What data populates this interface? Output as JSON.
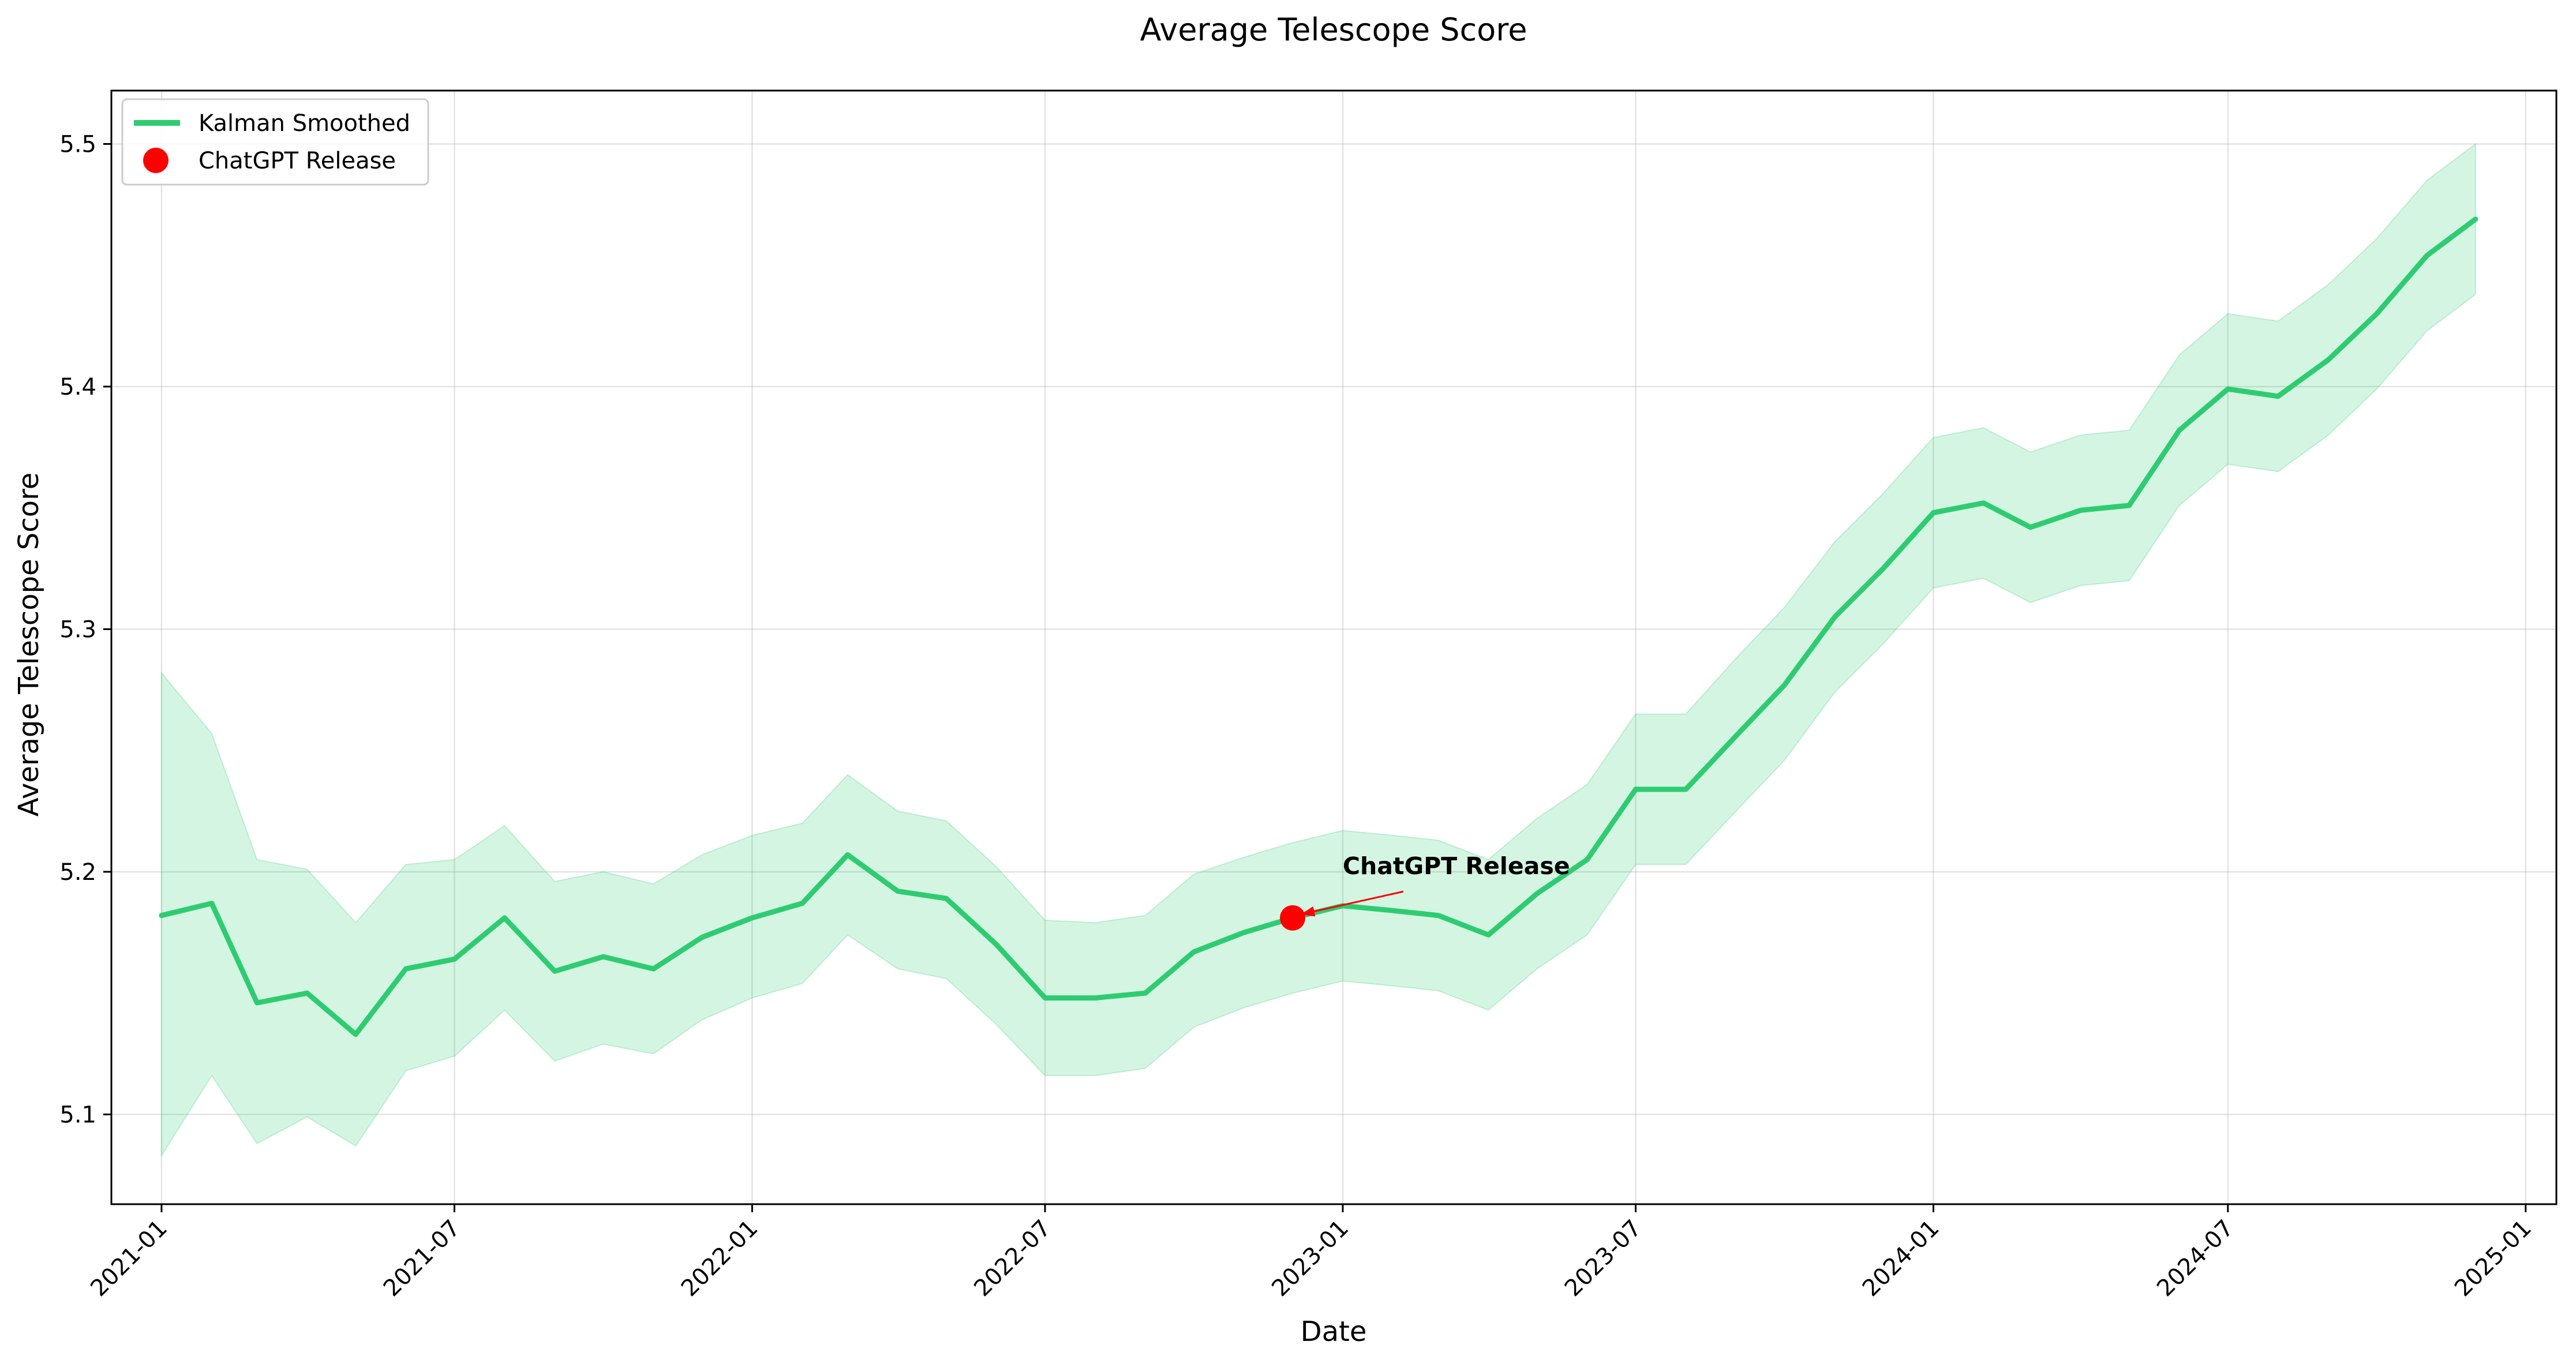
{
  "chart_data": {
    "type": "line",
    "title": "Average Telescope Score",
    "xlabel": "Date",
    "ylabel": "Average Telescope Score",
    "xlim": [
      "2020-12-01",
      "2025-01-20"
    ],
    "ylim": [
      5.063,
      5.522
    ],
    "x_ticks": [
      "2021-01",
      "2021-07",
      "2022-01",
      "2022-07",
      "2023-01",
      "2023-07",
      "2024-01",
      "2024-07",
      "2025-01"
    ],
    "y_ticks": [
      "5.1",
      "5.2",
      "5.3",
      "5.4",
      "5.5"
    ],
    "grid": true,
    "legend_position": "top-left",
    "colors": {
      "line": "#2ecc71",
      "band": "#2ecc71",
      "marker": "#ff0000",
      "annotation": "#ff0000"
    },
    "series": [
      {
        "name": "Kalman Smoothed",
        "x": [
          "2021-01-01",
          "2021-02-01",
          "2021-03-01",
          "2021-04-01",
          "2021-05-01",
          "2021-06-01",
          "2021-07-01",
          "2021-08-01",
          "2021-09-01",
          "2021-10-01",
          "2021-11-01",
          "2021-12-01",
          "2022-01-01",
          "2022-02-01",
          "2022-03-01",
          "2022-04-01",
          "2022-05-01",
          "2022-06-01",
          "2022-07-01",
          "2022-08-01",
          "2022-09-01",
          "2022-10-01",
          "2022-11-01",
          "2022-12-01",
          "2023-01-01",
          "2023-02-01",
          "2023-03-01",
          "2023-04-01",
          "2023-05-01",
          "2023-06-01",
          "2023-07-01",
          "2023-08-01",
          "2023-09-01",
          "2023-10-01",
          "2023-11-01",
          "2023-12-01",
          "2024-01-01",
          "2024-02-01",
          "2024-03-01",
          "2024-04-01",
          "2024-05-01",
          "2024-06-01",
          "2024-07-01",
          "2024-08-01",
          "2024-09-01",
          "2024-10-01",
          "2024-11-01",
          "2024-12-01"
        ],
        "y": [
          5.182,
          5.187,
          5.146,
          5.15,
          5.133,
          5.16,
          5.164,
          5.181,
          5.159,
          5.165,
          5.16,
          5.173,
          5.181,
          5.187,
          5.207,
          5.192,
          5.189,
          5.17,
          5.148,
          5.148,
          5.15,
          5.167,
          5.175,
          5.181,
          5.186,
          5.184,
          5.182,
          5.174,
          5.191,
          5.205,
          5.234,
          5.234,
          5.256,
          5.277,
          5.305,
          5.325,
          5.348,
          5.352,
          5.342,
          5.349,
          5.351,
          5.382,
          5.399,
          5.396,
          5.411,
          5.43,
          5.454,
          5.469
        ],
        "upper": [
          5.282,
          5.257,
          5.205,
          5.201,
          5.179,
          5.203,
          5.205,
          5.219,
          5.196,
          5.2,
          5.195,
          5.207,
          5.215,
          5.22,
          5.24,
          5.225,
          5.221,
          5.202,
          5.18,
          5.179,
          5.182,
          5.199,
          5.206,
          5.212,
          5.217,
          5.215,
          5.213,
          5.205,
          5.222,
          5.236,
          5.265,
          5.265,
          5.288,
          5.309,
          5.336,
          5.356,
          5.379,
          5.383,
          5.373,
          5.38,
          5.382,
          5.413,
          5.43,
          5.427,
          5.442,
          5.461,
          5.485,
          5.5
        ],
        "lower": [
          5.083,
          5.116,
          5.088,
          5.099,
          5.087,
          5.118,
          5.124,
          5.143,
          5.122,
          5.129,
          5.125,
          5.139,
          5.148,
          5.154,
          5.174,
          5.16,
          5.156,
          5.137,
          5.116,
          5.116,
          5.119,
          5.136,
          5.144,
          5.15,
          5.155,
          5.153,
          5.151,
          5.143,
          5.16,
          5.174,
          5.203,
          5.203,
          5.225,
          5.246,
          5.274,
          5.294,
          5.317,
          5.321,
          5.311,
          5.318,
          5.32,
          5.351,
          5.368,
          5.365,
          5.38,
          5.399,
          5.423,
          5.438
        ]
      }
    ],
    "markers": [
      {
        "name": "ChatGPT Release",
        "x": "2022-12-01",
        "y": 5.181
      }
    ],
    "annotations": [
      {
        "text": "ChatGPT Release",
        "x": "2023-01-01",
        "y": 5.199,
        "arrow_to_x": "2022-12-01",
        "arrow_to_y": 5.181
      }
    ]
  }
}
